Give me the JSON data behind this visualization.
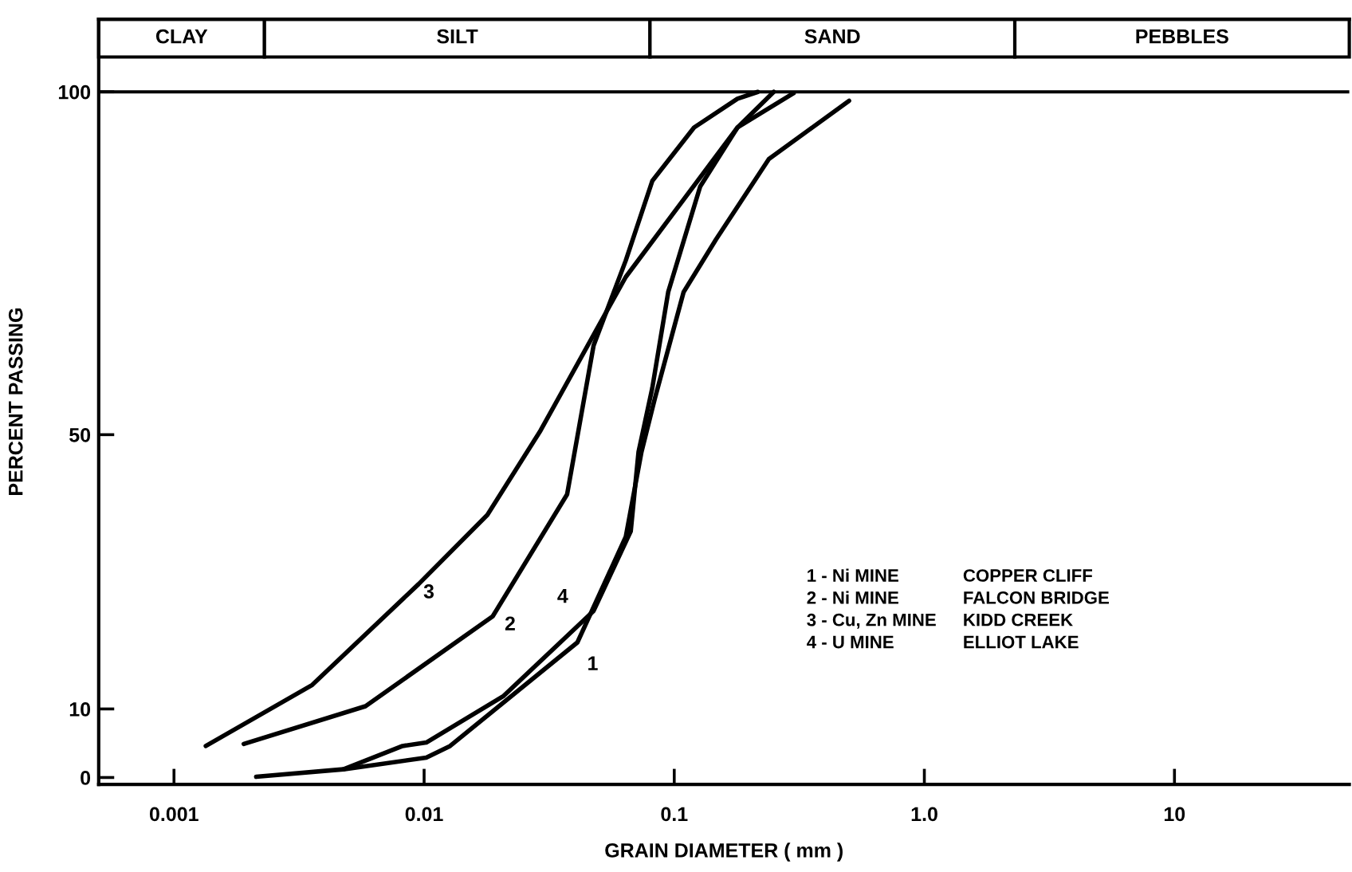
{
  "chart_data": {
    "type": "line",
    "xlabel": "GRAIN DIAMETER ( mm )",
    "ylabel": "PERCENT PASSING",
    "log": "x",
    "xlim": [
      0.0005,
      50
    ],
    "ylim": [
      -1,
      110.6
    ],
    "xticks": [
      0.001,
      0.01,
      0.1,
      {
        "value": 1,
        "label": "1.0"
      },
      10
    ],
    "yticks": [
      0,
      10,
      50,
      100
    ],
    "grid": false,
    "legend": false,
    "marker": "none",
    "line_style": "solid",
    "series": [
      {
        "color": "#000000",
        "x": [
          0.00213,
          0.00476,
          0.0102,
          0.0127,
          0.041,
          0.064,
          0.074,
          0.0837,
          0.109,
          0.147,
          0.239,
          0.5
        ],
        "values": [
          0.1,
          1.2,
          2.9,
          4.6,
          19.7,
          35.1,
          47.5,
          55.3,
          70.8,
          78.5,
          90.2,
          98.7
        ]
      },
      {
        "color": "#000000",
        "x": [
          0.0019,
          0.00583,
          0.0188,
          0.0373,
          0.0476,
          0.064,
          0.0817,
          0.12,
          0.179,
          0.216
        ],
        "values": [
          4.9,
          10.4,
          23.5,
          41.3,
          63,
          75.4,
          87,
          94.8,
          99,
          100
        ]
      },
      {
        "color": "#000000",
        "x": [
          0.00134,
          0.00357,
          0.0095,
          0.0179,
          0.0292,
          0.064,
          0.179,
          0.25
        ],
        "values": [
          4.6,
          13.5,
          28.2,
          38.3,
          50.6,
          73,
          94.8,
          100
        ]
      },
      {
        "color": "#000000",
        "x": [
          0.00476,
          0.0082,
          0.0102,
          0.0208,
          0.0476,
          0.067,
          0.072,
          0.0817,
          0.0946,
          0.127,
          0.179,
          0.3
        ],
        "values": [
          1.2,
          4.6,
          5.1,
          11.9,
          24.3,
          35.9,
          47.5,
          56.8,
          70.8,
          86.2,
          94.8,
          99.8
        ]
      }
    ],
    "ref_lines": [
      {
        "axis": "y",
        "value": 100
      }
    ],
    "bands": [
      {
        "axis": "x",
        "from": 0.0005,
        "to": 0.0023,
        "label": "CLAY",
        "color": "#ffffff"
      },
      {
        "axis": "x",
        "from": 0.0023,
        "to": 0.08,
        "label": "SILT",
        "color": "#ffffff"
      },
      {
        "axis": "x",
        "from": 0.08,
        "to": 2.3,
        "label": "SAND",
        "color": "#ffffff"
      },
      {
        "axis": "x",
        "from": 2.3,
        "to": 50,
        "label": "PEBBLES",
        "color": "#ffffff"
      }
    ],
    "annotations": [
      "3",
      "2",
      "4",
      "1",
      "1 - Ni MINE",
      "COPPER CLIFF",
      "2 - Ni MINE",
      "FALCON BRIDGE",
      "3 - Cu, Zn MINE",
      "KIDD CREEK",
      "4 - U MINE",
      "ELLIOT LAKE"
    ]
  }
}
